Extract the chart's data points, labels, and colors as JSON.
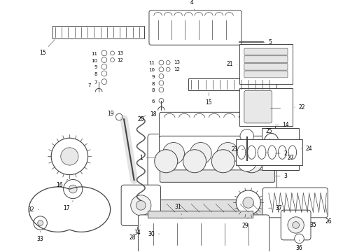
{
  "background_color": "#ffffff",
  "line_color": "#444444",
  "line_width": 0.7,
  "label_fontsize": 5.5
}
